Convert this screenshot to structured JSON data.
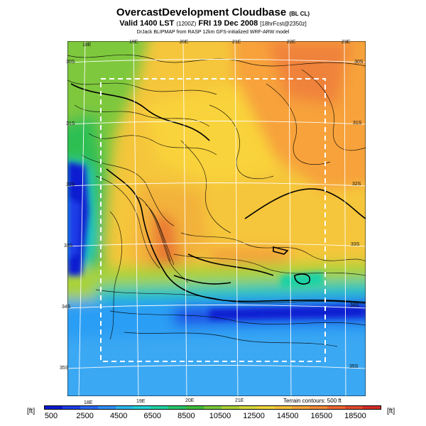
{
  "header": {
    "title": "OvercastDevelopment Cloudbase",
    "title_tag": "(BL CL)",
    "valid": "Valid 1400 LST",
    "valid_code": "(1200Z)",
    "valid_date": "FRI 19 Dec 2008",
    "forecast": "[18hrFcst@2350z]",
    "credit": "DrJack BLIPMAP from RASP 12km GFS-initialized WRF-ARW model"
  },
  "map": {
    "lon_labels_top": [
      "18E",
      "19E",
      "20E",
      "21E",
      "22E",
      "23E"
    ],
    "lon_labels_bottom": [
      "18E",
      "19E",
      "20E",
      "21E"
    ],
    "lat_labels_left": [
      "30S",
      "31S",
      "32S",
      "33S",
      "34S",
      "35S"
    ],
    "lat_labels_right": [
      "30S",
      "31S",
      "32S",
      "33S",
      "34S",
      "35S"
    ],
    "terrain_note": "Terrain contours: 500 ft"
  },
  "colorbar": {
    "unit_left": "[ft]",
    "unit_right": "[ft]",
    "labels": [
      "500",
      "2500",
      "4500",
      "6500",
      "8500",
      "10500",
      "12500",
      "14500",
      "16500",
      "18500"
    ],
    "colors": [
      "#0a1ad0",
      "#1f3ee8",
      "#2a66f2",
      "#2d8ff6",
      "#2bb8f0",
      "#22d3d8",
      "#1fd2a5",
      "#29c76a",
      "#3fbf3a",
      "#78c93a",
      "#aed238",
      "#d6d93b",
      "#f3d73a",
      "#f8c23a",
      "#f7a63a",
      "#f48b38",
      "#ee6a33",
      "#e34a2d",
      "#d42c26"
    ]
  }
}
